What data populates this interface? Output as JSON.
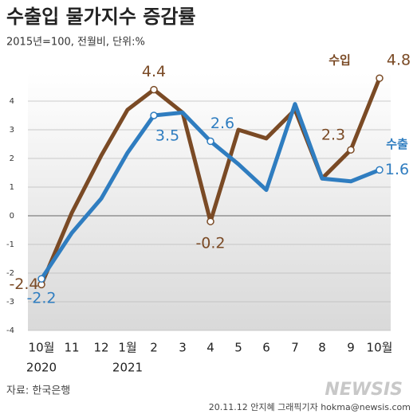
{
  "chart_data": {
    "type": "line",
    "title": "수출입 물가지수 증감률",
    "subtitle": "2015년=100, 전월비, 단위:%",
    "categories": [
      "10월",
      "11",
      "12",
      "1월",
      "2",
      "3",
      "4",
      "5",
      "6",
      "7",
      "8",
      "9",
      "10월"
    ],
    "year_labels": [
      "2020",
      "2021"
    ],
    "series": [
      {
        "name": "수입",
        "color": "#7a4a25",
        "values": [
          -2.4,
          0.1,
          2.1,
          3.7,
          4.4,
          3.6,
          -0.2,
          3.0,
          2.7,
          3.7,
          1.3,
          2.3,
          4.8
        ]
      },
      {
        "name": "수출",
        "color": "#2f7dc0",
        "values": [
          -2.2,
          -0.6,
          0.6,
          2.2,
          3.5,
          3.6,
          2.6,
          1.8,
          0.9,
          3.9,
          1.3,
          1.2,
          1.6
        ]
      }
    ],
    "ylim": [
      -4,
      5
    ],
    "yticks": [
      -4,
      -3,
      -2,
      -1,
      0,
      1,
      2,
      3,
      4
    ],
    "grid": true,
    "source": "자료: 한국은행",
    "credit": "20.11.12 안지혜 그래픽기자 hokma@newsis.com",
    "logo": "NEWSIS"
  }
}
